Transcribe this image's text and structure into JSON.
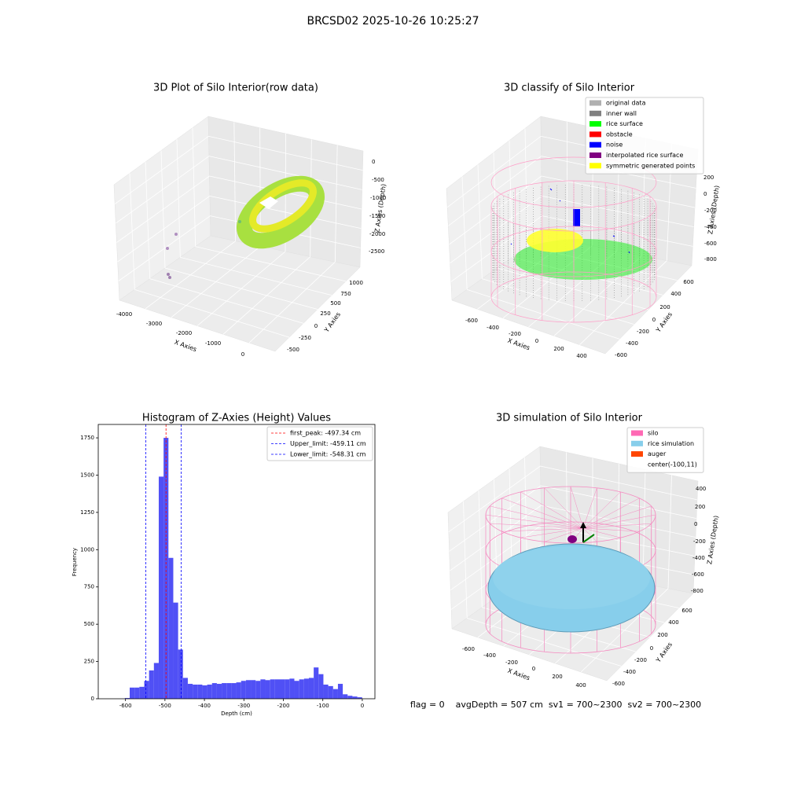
{
  "title": "BRCSD02 2025-10-26 10:25:27",
  "panels": [
    {
      "title": "3D Plot of Silo Interior(row data)",
      "xlabel": "X Axies",
      "ylabel": "Y Axies",
      "zlabel": "Z Axies (Depth)",
      "xticks": [
        -4000,
        -3000,
        -2000,
        -1000,
        0
      ],
      "yticks": [
        -500,
        -250,
        0,
        250,
        500,
        750,
        1000
      ],
      "zticks": [
        0,
        -500,
        -1000,
        -1500,
        -2000,
        -2500
      ]
    },
    {
      "title": "3D classify of Silo Interior",
      "xlabel": "X Axies",
      "ylabel": "Y Axies",
      "zlabel": "Z Axies (Depth)",
      "xticks": [
        -600,
        -400,
        -200,
        0,
        200,
        400
      ],
      "yticks": [
        -600,
        -400,
        -200,
        0,
        200,
        400,
        600
      ],
      "zticks": [
        200,
        0,
        -200,
        -400,
        -600,
        -800
      ],
      "legend": [
        {
          "name": "original data",
          "color": "#b0b0b0"
        },
        {
          "name": "inner wall",
          "color": "#808080"
        },
        {
          "name": "rice surface",
          "color": "#00ff00"
        },
        {
          "name": "obstacle",
          "color": "#ff0000"
        },
        {
          "name": "noise",
          "color": "#0000ff"
        },
        {
          "name": "interpolated rice surface",
          "color": "#800080"
        },
        {
          "name": "symmetric generated points",
          "color": "#ffff00"
        }
      ]
    },
    {
      "title": "3D simulation of Silo Interior",
      "xlabel": "X Axies",
      "ylabel": "Y Axies",
      "zlabel": "Z Axies (Depth)",
      "xticks": [
        -600,
        -400,
        -200,
        0,
        200,
        400
      ],
      "yticks": [
        -600,
        -400,
        -200,
        0,
        200,
        400,
        600
      ],
      "zticks": [
        400,
        200,
        0,
        -200,
        -400,
        -600,
        -800
      ],
      "legend": [
        {
          "name": "silo",
          "color": "#ff69b4"
        },
        {
          "name": "rice simulation",
          "color": "#87ceeb"
        },
        {
          "name": "auger",
          "color": "#ff4500"
        },
        {
          "name": "center(-100,11)"
        }
      ]
    }
  ],
  "chart_data": {
    "type": "histogram",
    "title": "Histogram of Z-Axies (Height) Values",
    "x_label": "Depth (cm)",
    "y_label": "Frequency",
    "color": "#5050f5",
    "bins": [
      -601.6,
      -589.33,
      -577.06,
      -564.79,
      -552.52,
      -540.25,
      -527.98,
      -515.71,
      -503.44,
      -491.17,
      -478.9,
      -466.63,
      -454.36,
      -442.09,
      -429.82,
      -417.55,
      -405.28,
      -393.01,
      -380.74,
      -368.47,
      -356.2,
      -343.93,
      -331.66,
      -319.39,
      -307.12,
      -294.85,
      -282.58,
      -270.31,
      -258.04,
      -245.77,
      -233.5,
      -221.23,
      -208.96,
      -196.69,
      -184.42,
      -172.15,
      -159.88,
      -147.61,
      -135.34,
      -123.07,
      -110.8,
      -98.53,
      -86.26,
      -73.99,
      -61.72,
      -49.45,
      -37.18,
      -24.91,
      -12.64,
      -0.37
    ],
    "values": [
      5,
      75,
      75,
      80,
      120,
      190,
      240,
      1490,
      1750,
      945,
      645,
      330,
      140,
      100,
      95,
      95,
      90,
      95,
      105,
      100,
      105,
      105,
      105,
      110,
      120,
      125,
      125,
      120,
      130,
      125,
      130,
      130,
      130,
      130,
      135,
      120,
      130,
      135,
      140,
      210,
      165,
      95,
      85,
      65,
      100,
      30,
      20,
      15,
      10
    ],
    "xlim": [
      -669,
      32
    ],
    "ylim": [
      0,
      1840
    ],
    "xticks": [
      -600,
      -500,
      -400,
      -300,
      -200,
      -100,
      0
    ],
    "yticks": [
      0,
      250,
      500,
      750,
      1000,
      1250,
      1500,
      1750
    ],
    "lines": [
      {
        "name": "first_peak: -497.34 cm",
        "value": -497.34,
        "color": "#ff0000"
      },
      {
        "name": "Upper_limit: -459.11 cm",
        "value": -459.11,
        "color": "#0000ff"
      },
      {
        "name": "Lower_limit: -548.31 cm",
        "value": -548.31,
        "color": "#0000ff"
      }
    ]
  },
  "footer": "flag = 0    avgDepth = 507 cm  sv1 = 700~2300  sv2 = 700~2300"
}
